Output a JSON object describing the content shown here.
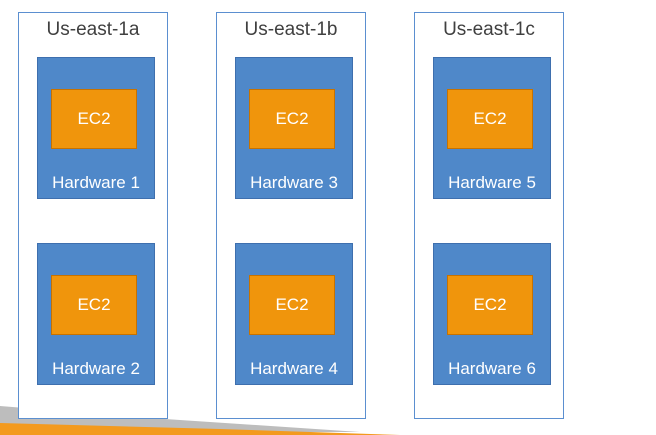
{
  "zones": [
    {
      "title": "Us-east-1a",
      "hardware": [
        {
          "label": "Hardware 1",
          "instance": "EC2"
        },
        {
          "label": "Hardware 2",
          "instance": "EC2"
        }
      ]
    },
    {
      "title": "Us-east-1b",
      "hardware": [
        {
          "label": "Hardware 3",
          "instance": "EC2"
        },
        {
          "label": "Hardware 4",
          "instance": "EC2"
        }
      ]
    },
    {
      "title": "Us-east-1c",
      "hardware": [
        {
          "label": "Hardware 5",
          "instance": "EC2"
        },
        {
          "label": "Hardware 6",
          "instance": "EC2"
        }
      ]
    }
  ],
  "colors": {
    "zone_border": "#5b8fd0",
    "hardware_fill": "#4f88c9",
    "ec2_fill": "#f0950c",
    "swoosh_gray": "#bdbdbd",
    "swoosh_orange": "#f39a1e"
  }
}
